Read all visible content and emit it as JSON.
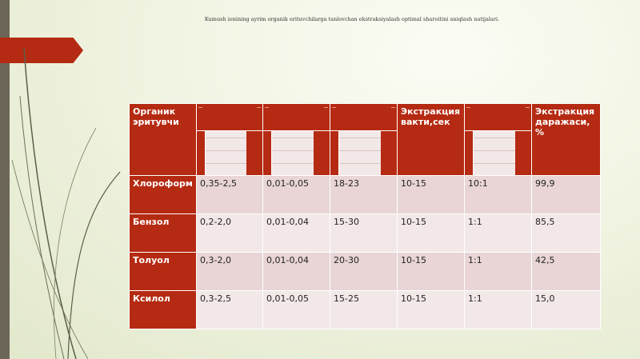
{
  "slide": {
    "title": "Kumush ionining ayrim organik erituvchilarga tanlovchan ekstraksiyalash optimal sharoitini aniqlash natijalari.",
    "accent_color": "#b52a12"
  },
  "table": {
    "headers": [
      "Органик эритувчи",
      "",
      "",
      "",
      "Экстракция вакти,сек",
      "",
      "Экстракция даражаси, %"
    ],
    "rows": [
      [
        "Хлороформ",
        "0,35-2,5",
        "0,01-0,05",
        "18-23",
        "10-15",
        "10:1",
        "99,9"
      ],
      [
        "Бензол",
        "0,2-2,0",
        "0,01-0,04",
        "15-30",
        "10-15",
        "1:1",
        "85,5"
      ],
      [
        "Толуол",
        "0,3-2,0",
        "0,01-0,04",
        "20-30",
        "10-15",
        "1:1",
        "42,5"
      ],
      [
        "Ксилол",
        "0,3-2,5",
        "0,01-0,05",
        "15-25",
        "10-15",
        "1:1",
        "15,0"
      ]
    ]
  }
}
